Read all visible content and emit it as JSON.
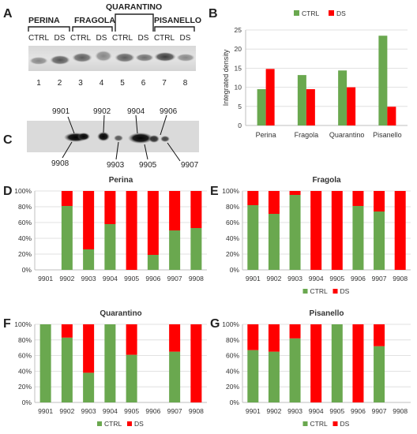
{
  "colors": {
    "ctrl": "#6aa84f",
    "ds": "#ff0000",
    "axis": "#bfbfbf",
    "grid": "#d9d9d9",
    "text": "#333333"
  },
  "panels": {
    "a": {
      "letter": "A",
      "groups": [
        "PERINA",
        "FRAGOLA",
        "QUARANTINO",
        "PISANELLO"
      ],
      "lane_conditions": [
        "CTRL",
        "DS",
        "CTRL",
        "DS",
        "CTRL",
        "DS",
        "CTRL",
        "DS"
      ],
      "lane_numbers": [
        "1",
        "2",
        "3",
        "4",
        "5",
        "6",
        "7",
        "8"
      ]
    },
    "b": {
      "letter": "B"
    },
    "c": {
      "letter": "C",
      "top_labels": [
        "9901",
        "9902",
        "9904",
        "9906"
      ],
      "bottom_labels": [
        "9908",
        "9903",
        "9905",
        "9907"
      ]
    },
    "d": {
      "letter": "D"
    },
    "e": {
      "letter": "E"
    },
    "f": {
      "letter": "F"
    },
    "g": {
      "letter": "G"
    }
  },
  "chart_data": [
    {
      "panel": "B",
      "type": "bar",
      "title": "",
      "xlabel": "",
      "ylabel": "Integrated density",
      "categories": [
        "Perina",
        "Fragola",
        "Quarantino",
        "Pisanello"
      ],
      "series": [
        {
          "name": "CTRL",
          "values": [
            9.5,
            13.2,
            14.4,
            23.5
          ]
        },
        {
          "name": "DS",
          "values": [
            14.8,
            9.5,
            10.0,
            4.9
          ]
        }
      ],
      "ylim": [
        0,
        25
      ],
      "yticks": [
        0,
        5,
        10,
        15,
        20,
        25
      ],
      "legend": "top",
      "grid": true
    },
    {
      "panel": "D",
      "type": "bar",
      "stacked": "100%",
      "title": "Perina",
      "categories": [
        "9901",
        "9902",
        "9903",
        "9904",
        "9905",
        "9906",
        "9907",
        "9908"
      ],
      "series": [
        {
          "name": "CTRL",
          "values": [
            0,
            81,
            26,
            58,
            0,
            19,
            50,
            53
          ]
        },
        {
          "name": "DS",
          "values": [
            0,
            19,
            74,
            42,
            100,
            81,
            50,
            47
          ]
        }
      ],
      "yticks": [
        "0%",
        "20%",
        "40%",
        "60%",
        "80%",
        "100%"
      ],
      "legend": "none",
      "grid": true
    },
    {
      "panel": "E",
      "type": "bar",
      "stacked": "100%",
      "title": "Fragola",
      "categories": [
        "9901",
        "9902",
        "9903",
        "9904",
        "9905",
        "9906",
        "9907",
        "9908"
      ],
      "series": [
        {
          "name": "CTRL",
          "values": [
            82,
            71,
            95,
            0,
            0,
            81,
            74,
            0
          ]
        },
        {
          "name": "DS",
          "values": [
            18,
            29,
            5,
            100,
            100,
            19,
            26,
            100
          ]
        }
      ],
      "yticks": [
        "0%",
        "20%",
        "40%",
        "60%",
        "80%",
        "100%"
      ],
      "legend": "bottom",
      "grid": true
    },
    {
      "panel": "F",
      "type": "bar",
      "stacked": "100%",
      "title": "Quarantino",
      "categories": [
        "9901",
        "9902",
        "9903",
        "9904",
        "9905",
        "9906",
        "9907",
        "9908"
      ],
      "series": [
        {
          "name": "CTRL",
          "values": [
            100,
            83,
            38,
            100,
            61,
            0,
            65,
            0
          ]
        },
        {
          "name": "DS",
          "values": [
            0,
            17,
            62,
            0,
            39,
            0,
            35,
            100
          ]
        }
      ],
      "yticks": [
        "0%",
        "20%",
        "40%",
        "60%",
        "80%",
        "100%"
      ],
      "legend": "bottom",
      "grid": true
    },
    {
      "panel": "G",
      "type": "bar",
      "stacked": "100%",
      "title": "Pisanello",
      "categories": [
        "9901",
        "9902",
        "9903",
        "9904",
        "9905",
        "9906",
        "9907",
        "9908"
      ],
      "series": [
        {
          "name": "CTRL",
          "values": [
            67,
            65,
            82,
            0,
            100,
            0,
            72,
            0
          ]
        },
        {
          "name": "DS",
          "values": [
            33,
            35,
            18,
            100,
            0,
            100,
            28,
            0
          ]
        }
      ],
      "yticks": [
        "0%",
        "20%",
        "40%",
        "60%",
        "80%",
        "100%"
      ],
      "legend": "bottom",
      "grid": true
    }
  ]
}
